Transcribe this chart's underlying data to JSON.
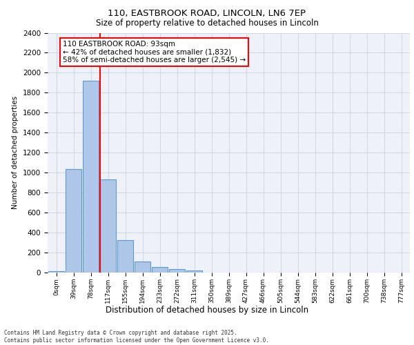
{
  "title_line1": "110, EASTBROOK ROAD, LINCOLN, LN6 7EP",
  "title_line2": "Size of property relative to detached houses in Lincoln",
  "xlabel": "Distribution of detached houses by size in Lincoln",
  "ylabel": "Number of detached properties",
  "bar_labels": [
    "0sqm",
    "39sqm",
    "78sqm",
    "117sqm",
    "155sqm",
    "194sqm",
    "233sqm",
    "272sqm",
    "311sqm",
    "350sqm",
    "389sqm",
    "427sqm",
    "466sqm",
    "505sqm",
    "544sqm",
    "583sqm",
    "622sqm",
    "661sqm",
    "700sqm",
    "738sqm",
    "777sqm"
  ],
  "bar_values": [
    15,
    1035,
    1920,
    930,
    325,
    110,
    55,
    32,
    22,
    0,
    0,
    0,
    0,
    0,
    0,
    0,
    0,
    0,
    0,
    0,
    0
  ],
  "bar_color": "#aec6e8",
  "bar_edge_color": "#5b9bd5",
  "grid_color": "#d0d8e8",
  "background_color": "#eef2f8",
  "red_line_x": 2.54,
  "annotation_text": "110 EASTBROOK ROAD: 93sqm\n← 42% of detached houses are smaller (1,832)\n58% of semi-detached houses are larger (2,545) →",
  "ylim": [
    0,
    2400
  ],
  "yticks": [
    0,
    200,
    400,
    600,
    800,
    1000,
    1200,
    1400,
    1600,
    1800,
    2000,
    2200,
    2400
  ],
  "footer_line1": "Contains HM Land Registry data © Crown copyright and database right 2025.",
  "footer_line2": "Contains public sector information licensed under the Open Government Licence v3.0."
}
